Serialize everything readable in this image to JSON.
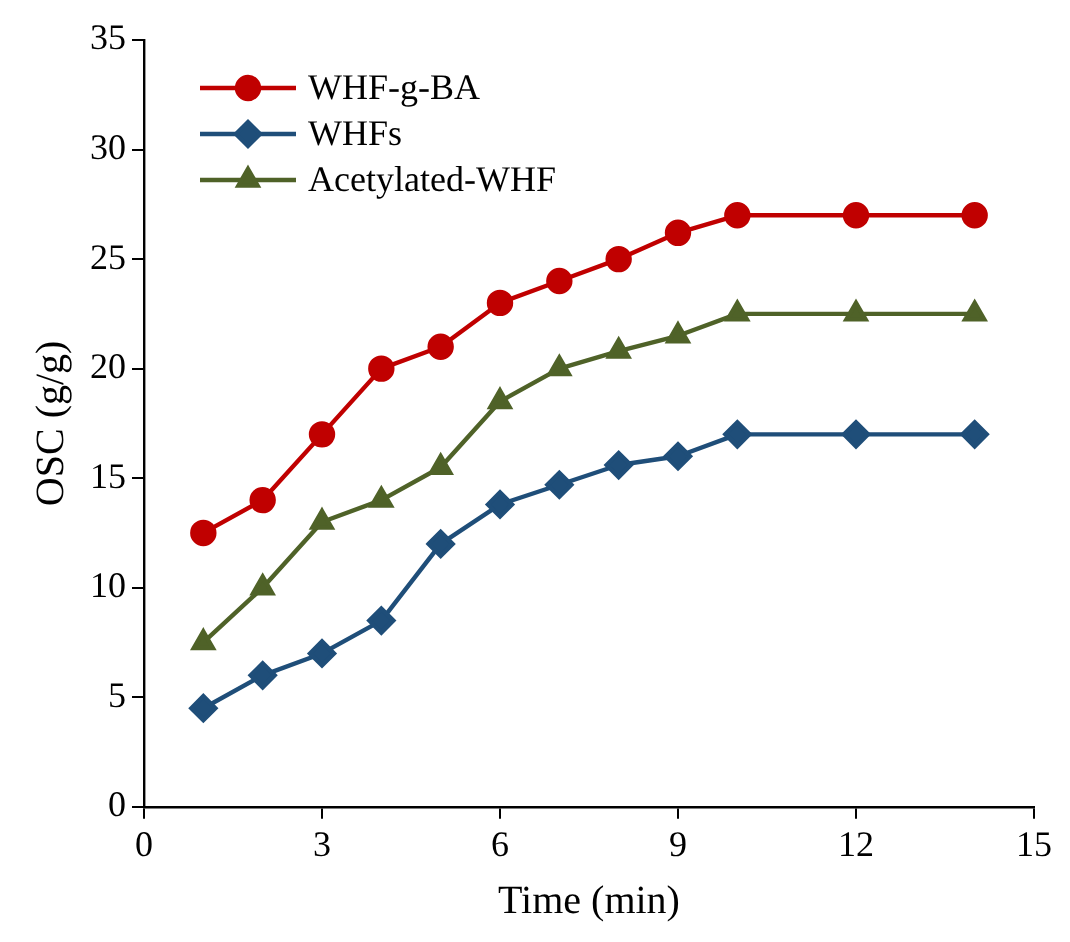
{
  "chart_data": {
    "type": "line",
    "xlabel": "Time (min)",
    "ylabel": "OSC (g/g)",
    "x": [
      1,
      2,
      3,
      4,
      5,
      6,
      7,
      8,
      9,
      10,
      12,
      14
    ],
    "series": [
      {
        "name": "WHF-g-BA",
        "color": "#c00000",
        "marker": "circle",
        "values": [
          12.5,
          14,
          17,
          20,
          21,
          23,
          24,
          25,
          26.2,
          27,
          27,
          27
        ]
      },
      {
        "name": "WHFs",
        "color": "#1f4e79",
        "marker": "diamond",
        "values": [
          4.5,
          6,
          7,
          8.5,
          12,
          13.8,
          14.7,
          15.6,
          16,
          17,
          17,
          17
        ]
      },
      {
        "name": "Acetylated-WHF",
        "color": "#4f6228",
        "marker": "triangle",
        "values": [
          7.5,
          10,
          13,
          14,
          15.5,
          18.5,
          20,
          20.8,
          21.5,
          22.5,
          22.5,
          22.5
        ]
      }
    ],
    "xlim": [
      0,
      15
    ],
    "xticks": [
      0,
      3,
      6,
      9,
      12,
      15
    ],
    "ylim": [
      0,
      35
    ],
    "yticks": [
      0,
      5,
      10,
      15,
      20,
      25,
      30,
      35
    ],
    "grid": false,
    "legend": "top left",
    "line_style": "solid"
  }
}
